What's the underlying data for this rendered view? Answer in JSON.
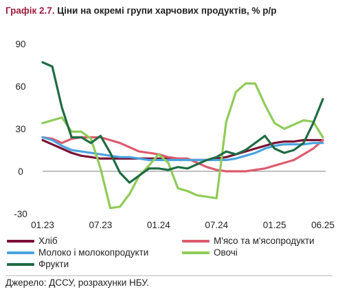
{
  "header": {
    "figure_number": "Графік 2.7.",
    "title": "Ціни на окремі групи харчових продуктів, % р/р"
  },
  "source": "Джерело: ДССУ, розрахунки НБУ.",
  "chart_data": {
    "type": "line",
    "title": "Ціни на окремі групи харчових продуктів, % р/р",
    "xlabel": "",
    "ylabel": "",
    "ylim": [
      -30,
      90
    ],
    "yticks": [
      -30,
      0,
      30,
      60,
      90
    ],
    "x": [
      "01.23",
      "02.23",
      "03.23",
      "04.23",
      "05.23",
      "06.23",
      "07.23",
      "08.23",
      "09.23",
      "10.23",
      "11.23",
      "12.23",
      "01.24",
      "02.24",
      "03.24",
      "04.24",
      "05.24",
      "06.24",
      "07.24",
      "08.24",
      "09.24",
      "10.24",
      "11.24",
      "12.24",
      "01.25",
      "02.25",
      "03.25",
      "04.25",
      "05.25",
      "06.25"
    ],
    "xtick_labels": [
      "01.23",
      "07.23",
      "01.24",
      "07.24",
      "01.25",
      "06.25"
    ],
    "grid": false,
    "legend_position": "bottom",
    "series": [
      {
        "name": "Хліб",
        "color": "#7a1035",
        "values": [
          22,
          19,
          16,
          13,
          11,
          10,
          9,
          9,
          9,
          9,
          9,
          9,
          9,
          9,
          9,
          8,
          8,
          8,
          9,
          10,
          12,
          14,
          16,
          18,
          20,
          21,
          21,
          22,
          22,
          22
        ]
      },
      {
        "name": "М'ясо та м'ясопродукти",
        "color": "#dd5b6e",
        "values": [
          24,
          23,
          20,
          23,
          24,
          24,
          24,
          22,
          20,
          17,
          14,
          13,
          12,
          10,
          9,
          9,
          6,
          3,
          1,
          0,
          0,
          0,
          1,
          2,
          4,
          6,
          8,
          12,
          16,
          22
        ]
      },
      {
        "name": "Молоко і молокопродукти",
        "color": "#4aa3df",
        "values": [
          24,
          22,
          18,
          15,
          14,
          13,
          12,
          11,
          10,
          10,
          9,
          8,
          8,
          8,
          8,
          8,
          8,
          8,
          8,
          8,
          9,
          11,
          13,
          16,
          18,
          19,
          19,
          19,
          20,
          20
        ]
      },
      {
        "name": "Овочі",
        "color": "#8fcb58",
        "values": [
          34,
          36,
          38,
          28,
          28,
          23,
          2,
          -26,
          -25,
          -16,
          -3,
          4,
          12,
          6,
          -12,
          -14,
          -17,
          -18,
          -19,
          35,
          56,
          62,
          62,
          47,
          34,
          30,
          33,
          36,
          35,
          24
        ]
      },
      {
        "name": "Фрукти",
        "color": "#1f6b43",
        "values": [
          77,
          74,
          45,
          24,
          24,
          20,
          25,
          13,
          -1,
          -8,
          -3,
          2,
          2,
          1,
          3,
          2,
          5,
          8,
          10,
          14,
          12,
          15,
          20,
          25,
          16,
          13,
          15,
          20,
          34,
          51
        ]
      }
    ]
  }
}
